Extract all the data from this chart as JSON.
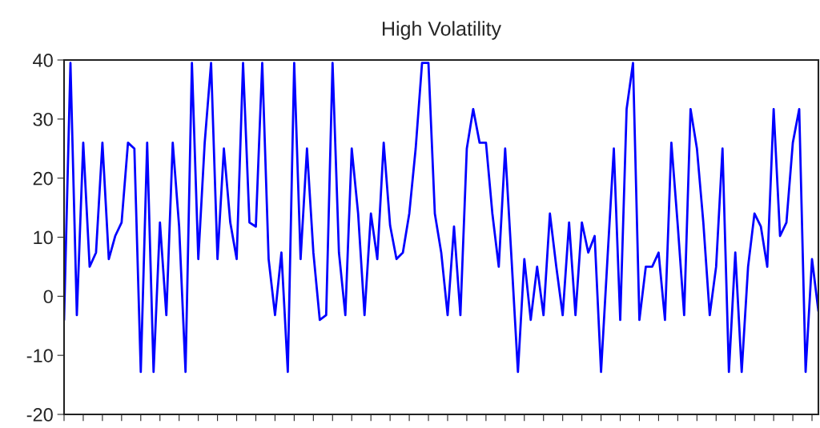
{
  "chart_data": {
    "type": "line",
    "title": "High Volatility",
    "categories": [
      null,
      null,
      null,
      null,
      null,
      null,
      null,
      null,
      null,
      null,
      null,
      null,
      null,
      null,
      null,
      null,
      null,
      null,
      null,
      null,
      null,
      null,
      null,
      null,
      null,
      null,
      null,
      null,
      null,
      null,
      null,
      null,
      null,
      null,
      null,
      null,
      null,
      null,
      null,
      null,
      null,
      null,
      null,
      null,
      null,
      null,
      null,
      null,
      null,
      null,
      null,
      null,
      null,
      null,
      null,
      null,
      null,
      null,
      null,
      null,
      null,
      null,
      null,
      null,
      null,
      null,
      null,
      null,
      null,
      null,
      null,
      null,
      null,
      null,
      null,
      null,
      null,
      null,
      null,
      null,
      null,
      null,
      null,
      null,
      null,
      null,
      null,
      null,
      null,
      null,
      null,
      null,
      null,
      null,
      null,
      null,
      null,
      null,
      null,
      null,
      null,
      null,
      null,
      null,
      null,
      null,
      null,
      null,
      null,
      null,
      null,
      null,
      null,
      null,
      null,
      null,
      null,
      null,
      null
    ],
    "series": [
      {
        "color": "#0000ff",
        "values": [
          -4,
          39.5,
          -3.2,
          26,
          5,
          7.4,
          26,
          6.3,
          10.2,
          12.5,
          26,
          25,
          -12.8,
          26,
          -12.8,
          12.5,
          -3.2,
          26,
          11.8,
          -12.8,
          39.5,
          6.3,
          26,
          39.5,
          6.3,
          25,
          12.5,
          6.3,
          39.5,
          12.5,
          11.8,
          39.5,
          6.3,
          -3.2,
          7.4,
          -12.8,
          39.5,
          6.3,
          25,
          7.4,
          -4,
          -3.2,
          39.5,
          7.4,
          -3.2,
          25,
          14,
          -3.2,
          14,
          6.3,
          26,
          12,
          6.3,
          7.4,
          14,
          25,
          39.5,
          39.5,
          14,
          7.4,
          -3.2,
          11.8,
          -3.2,
          25,
          31.7,
          26,
          26,
          14,
          5,
          25,
          6.3,
          -12.8,
          6.3,
          -4,
          5,
          -3.2,
          14,
          5,
          -3.2,
          12.5,
          -3.2,
          12.5,
          7.4,
          10.2,
          -12.8,
          6.3,
          25,
          -4,
          31.7,
          39.5,
          -4,
          5,
          5,
          7.4,
          -4,
          26,
          12,
          -3.2,
          31.7,
          25,
          12.5,
          -3.2,
          5,
          25,
          -12.8,
          7.4,
          -12.8,
          5,
          14,
          11.8,
          5,
          31.7,
          10.2,
          12.5,
          26,
          31.7,
          -12.8,
          6.3,
          -2.5
        ]
      }
    ],
    "ylim": [
      -20,
      40
    ],
    "yticks": [
      -20,
      -10,
      0,
      10,
      20,
      30,
      40
    ],
    "grid": false,
    "line_style": "solid"
  }
}
